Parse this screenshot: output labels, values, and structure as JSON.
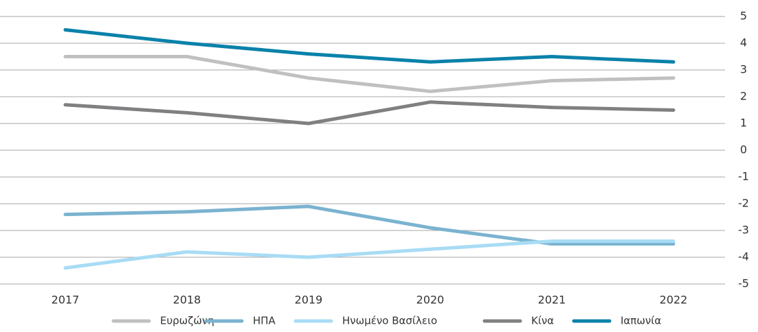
{
  "chart_data": {
    "type": "line",
    "categories": [
      "2017",
      "2018",
      "2019",
      "2020",
      "2021",
      "2022"
    ],
    "series": [
      {
        "name": "Ευρωζώνη",
        "color": "#c0c0c0",
        "values": [
          3.5,
          3.5,
          2.7,
          2.2,
          2.6,
          2.7
        ]
      },
      {
        "name": "ΗΠΑ",
        "color": "#7ab3d0",
        "values": [
          -2.4,
          -2.3,
          -2.1,
          -2.9,
          -3.5,
          -3.5
        ]
      },
      {
        "name": "Ηνωμένο Βασίλειο",
        "color": "#a8dcf5",
        "values": [
          -4.4,
          -3.8,
          -4.0,
          -3.7,
          -3.4,
          -3.4
        ]
      },
      {
        "name": "Κίνα",
        "color": "#808083",
        "values": [
          1.7,
          1.4,
          1.0,
          1.8,
          1.6,
          1.5
        ]
      },
      {
        "name": "Ιαπωνία",
        "color": "#0a82aa",
        "values": [
          4.5,
          4.0,
          3.6,
          3.3,
          3.5,
          3.3
        ]
      }
    ],
    "ylim": [
      -5,
      5
    ],
    "yticks": [
      -5,
      -4,
      -3,
      -2,
      -1,
      0,
      1,
      2,
      3,
      4,
      5
    ],
    "grid": true,
    "legend": "bottom"
  }
}
